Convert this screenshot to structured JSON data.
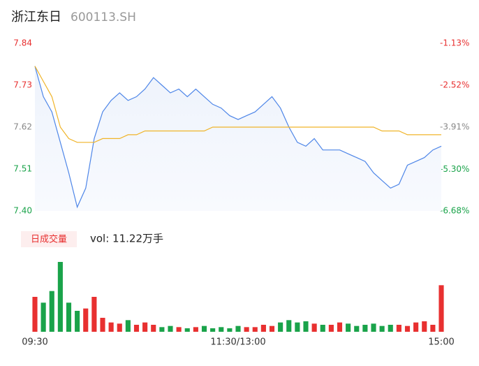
{
  "chart_data": {
    "type": "line",
    "title": "浙江东日",
    "subtitle": "600113.SH",
    "categories": [
      "09:30",
      null,
      null,
      null,
      null,
      null,
      null,
      null,
      null,
      null,
      null,
      null,
      null,
      null,
      null,
      null,
      null,
      null,
      null,
      null,
      null,
      null,
      null,
      null,
      "11:30/13:00",
      null,
      null,
      null,
      null,
      null,
      null,
      null,
      null,
      null,
      null,
      null,
      null,
      null,
      null,
      null,
      null,
      null,
      null,
      null,
      null,
      null,
      null,
      null,
      "15:00"
    ],
    "series": [
      {
        "color": "#4e86e8",
        "values": [
          7.78,
          7.7,
          7.66,
          7.58,
          7.5,
          7.41,
          7.46,
          7.59,
          7.66,
          7.69,
          7.71,
          7.69,
          7.7,
          7.72,
          7.75,
          7.73,
          7.71,
          7.72,
          7.7,
          7.72,
          7.7,
          7.68,
          7.67,
          7.65,
          7.64,
          7.65,
          7.66,
          7.68,
          7.7,
          7.67,
          7.62,
          7.58,
          7.57,
          7.59,
          7.56,
          7.56,
          7.56,
          7.55,
          7.54,
          7.53,
          7.5,
          7.48,
          7.46,
          7.47,
          7.52,
          7.53,
          7.54,
          7.56,
          7.57
        ]
      },
      {
        "color": "#f0b429",
        "values": [
          7.78,
          7.74,
          7.7,
          7.62,
          7.59,
          7.58,
          7.58,
          7.58,
          7.59,
          7.59,
          7.59,
          7.6,
          7.6,
          7.61,
          7.61,
          7.61,
          7.61,
          7.61,
          7.61,
          7.61,
          7.61,
          7.62,
          7.62,
          7.62,
          7.62,
          7.62,
          7.62,
          7.62,
          7.62,
          7.62,
          7.62,
          7.62,
          7.62,
          7.62,
          7.62,
          7.62,
          7.62,
          7.62,
          7.62,
          7.62,
          7.62,
          7.61,
          7.61,
          7.61,
          7.6,
          7.6,
          7.6,
          7.6,
          7.6
        ]
      }
    ],
    "ylim": [
      7.4,
      7.84
    ],
    "yticks": [
      {
        "value": 7.4,
        "label": "7.40"
      },
      7.51,
      7.62,
      7.73,
      7.84
    ],
    "y2lim": [
      -6.68,
      -1.13
    ],
    "y2ticks": [
      {
        "value": -6.68,
        "label": "-6.68%"
      },
      {
        "value": -5.3,
        "label": "-5.30%"
      },
      {
        "value": -3.91,
        "label": "-3.91%"
      },
      {
        "value": -2.52,
        "label": "-2.52%"
      },
      {
        "value": -1.13,
        "label": "-1.13%"
      }
    ],
    "up_color": "#e83030",
    "down_color": "#1aa34a",
    "neutral_color": "#888888",
    "grid": false,
    "volume": {
      "label": "日成交量",
      "text": "vol: 11.22万手",
      "values": [
        30,
        25,
        35,
        60,
        25,
        18,
        20,
        30,
        12,
        8,
        7,
        10,
        6,
        8,
        6,
        4,
        5,
        4,
        3,
        4,
        5,
        3,
        4,
        3,
        5,
        4,
        4,
        6,
        5,
        8,
        10,
        8,
        9,
        7,
        6,
        6,
        8,
        7,
        5,
        6,
        7,
        5,
        6,
        6,
        5,
        8,
        9,
        6,
        40
      ]
    }
  }
}
